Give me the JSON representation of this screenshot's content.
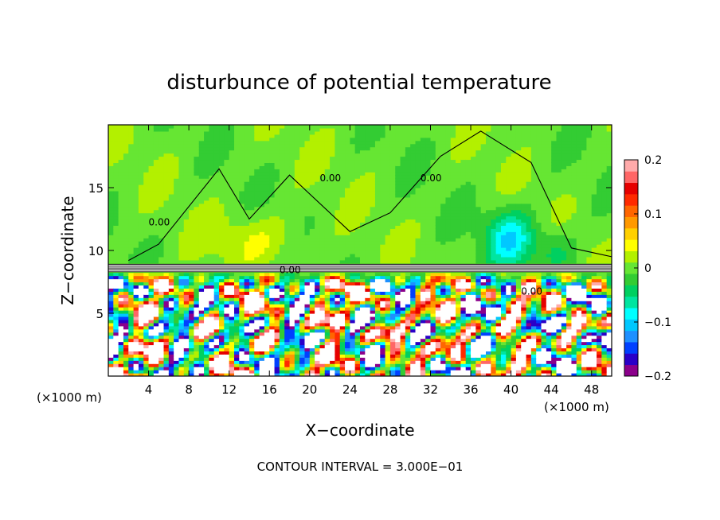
{
  "chart_data": {
    "type": "heatmap",
    "title": "disturbunce of potential temperature",
    "xlabel": "X−coordinate",
    "ylabel": "Z−coordinate",
    "x_unit_left": "(×1000 m)",
    "x_unit_right": "(×1000 m)",
    "footer": "CONTOUR INTERVAL = 3.000E−01",
    "x_ticks": [
      4,
      8,
      12,
      16,
      20,
      24,
      28,
      32,
      36,
      40,
      44,
      48
    ],
    "y_ticks": [
      5,
      10,
      15
    ],
    "xlim": [
      0,
      50
    ],
    "ylim": [
      0,
      20
    ],
    "contour_label": "0.00",
    "colorbar": {
      "range": [
        -0.2,
        0.2
      ],
      "tick_labels": [
        "0.2",
        "0.1",
        "0",
        "−0.1",
        "−0.2"
      ],
      "tick_values": [
        0.2,
        0.1,
        0,
        -0.1,
        -0.2
      ],
      "colors": [
        "#8b008b",
        "#2a00c8",
        "#0040ff",
        "#1e90ff",
        "#00c8ff",
        "#00ffff",
        "#00e5a0",
        "#00d060",
        "#33cc33",
        "#66e633",
        "#b3f000",
        "#ffff00",
        "#ffd000",
        "#ff9900",
        "#ff6600",
        "#ff2a00",
        "#e60000",
        "#ff6666",
        "#ffaaaa"
      ]
    },
    "inversion_layer_z": [
      8.3,
      8.9
    ]
  }
}
